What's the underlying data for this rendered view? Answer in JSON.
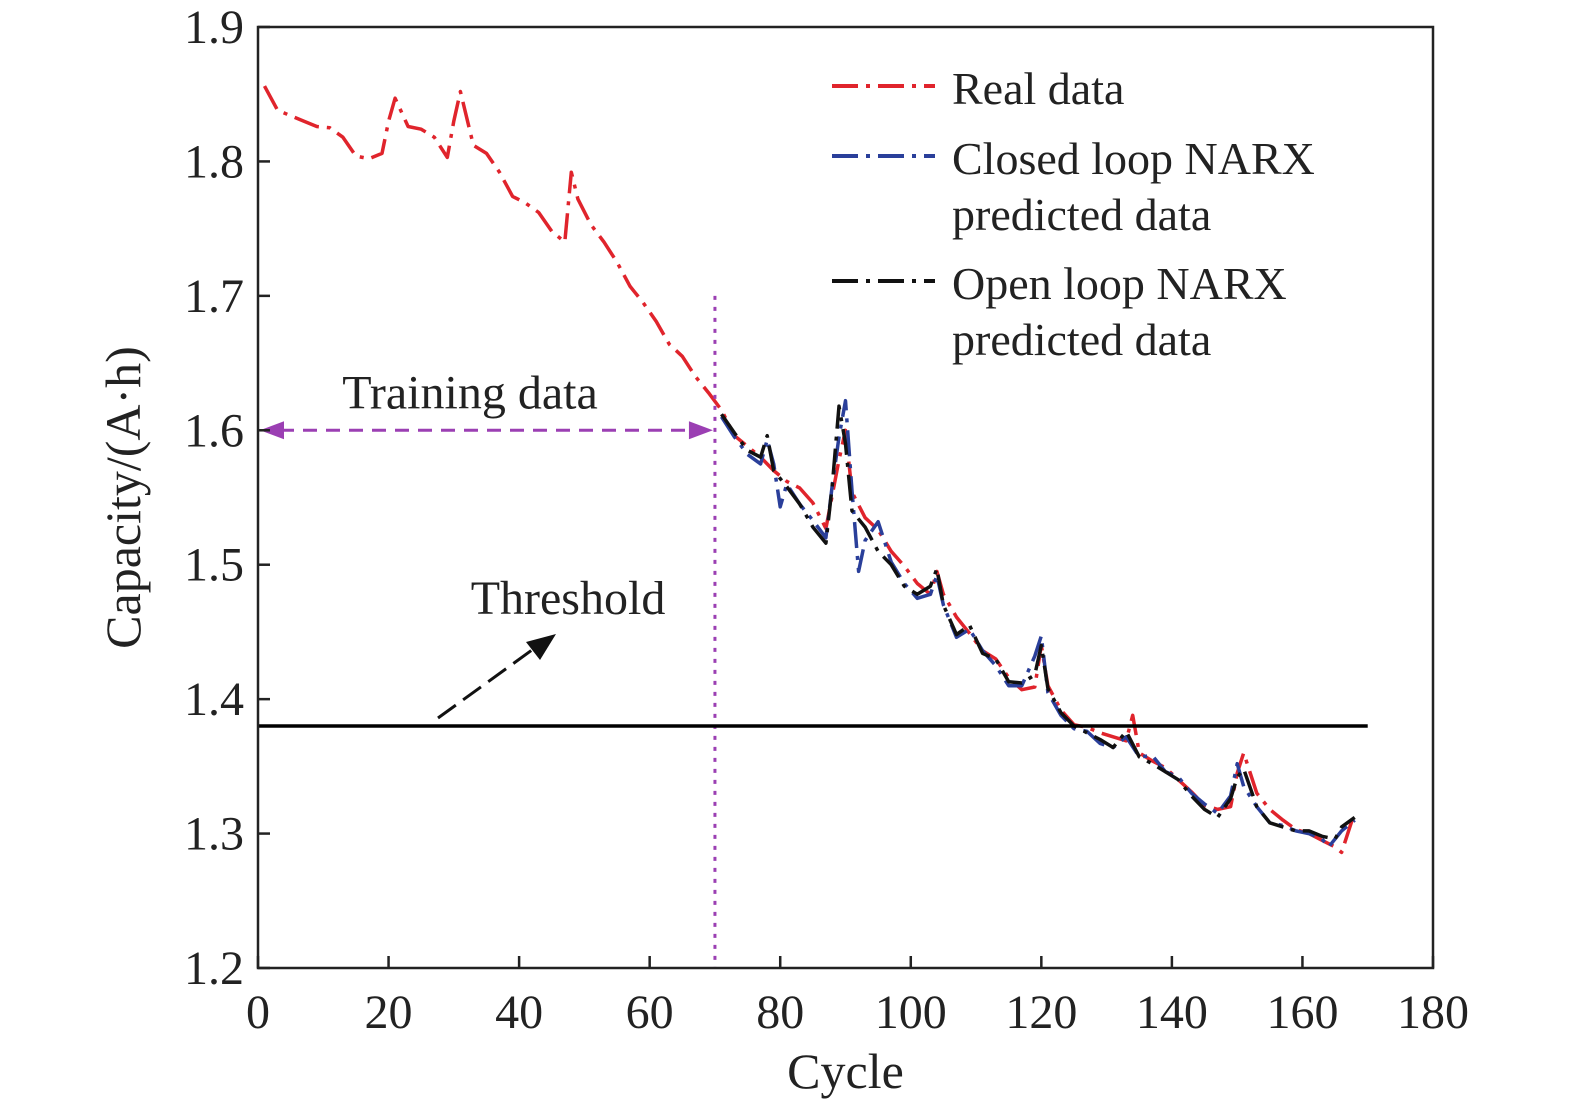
{
  "chart_data": {
    "type": "line",
    "xlabel": "Cycle",
    "ylabel": "Capacity/(A·h)",
    "xlim": [
      0,
      180
    ],
    "ylim": [
      1.2,
      1.9
    ],
    "xticks": [
      "0",
      "20",
      "40",
      "60",
      "80",
      "100",
      "120",
      "140",
      "160",
      "180"
    ],
    "yticks": [
      "1.2",
      "1.3",
      "1.4",
      "1.5",
      "1.6",
      "1.7",
      "1.8",
      "1.9"
    ],
    "grid": false,
    "legend_position": "top-right",
    "colors": {
      "real": "#e0242c",
      "closed": "#2a3f9a",
      "open": "#111111",
      "training": "#9b3fb3",
      "threshold": "#000000"
    },
    "threshold": 1.38,
    "training_end": 70,
    "annotations": {
      "training": "Training data",
      "threshold": "Threshold"
    },
    "series": [
      {
        "name": "Real data",
        "key": "real",
        "x": [
          1,
          3,
          5,
          7,
          9,
          11,
          13,
          15,
          17,
          19,
          20,
          21,
          23,
          25,
          27,
          29,
          30,
          31,
          33,
          35,
          37,
          39,
          41,
          43,
          45,
          47,
          48,
          49,
          51,
          53,
          55,
          57,
          59,
          61,
          63,
          65,
          67,
          69,
          71,
          73,
          75,
          77,
          79,
          81,
          83,
          85,
          87,
          89,
          90,
          91,
          93,
          95,
          97,
          99,
          101,
          103,
          104,
          105,
          107,
          109,
          111,
          113,
          115,
          117,
          119,
          120,
          121,
          123,
          125,
          127,
          129,
          131,
          133,
          134,
          135,
          137,
          139,
          141,
          143,
          145,
          147,
          149,
          150,
          151,
          153,
          155,
          157,
          159,
          161,
          163,
          165,
          166,
          168
        ],
        "y": [
          1.856,
          1.838,
          1.834,
          1.83,
          1.826,
          1.825,
          1.818,
          1.804,
          1.802,
          1.806,
          1.83,
          1.847,
          1.826,
          1.824,
          1.818,
          1.803,
          1.83,
          1.852,
          1.812,
          1.806,
          1.792,
          1.774,
          1.769,
          1.762,
          1.748,
          1.74,
          1.792,
          1.772,
          1.753,
          1.74,
          1.725,
          1.707,
          1.695,
          1.681,
          1.664,
          1.655,
          1.64,
          1.628,
          1.615,
          1.596,
          1.588,
          1.58,
          1.57,
          1.562,
          1.557,
          1.546,
          1.527,
          1.578,
          1.6,
          1.554,
          1.535,
          1.526,
          1.51,
          1.499,
          1.486,
          1.478,
          1.495,
          1.478,
          1.461,
          1.449,
          1.436,
          1.43,
          1.416,
          1.407,
          1.409,
          1.44,
          1.41,
          1.392,
          1.381,
          1.379,
          1.375,
          1.372,
          1.369,
          1.388,
          1.36,
          1.354,
          1.349,
          1.34,
          1.331,
          1.321,
          1.318,
          1.32,
          1.345,
          1.36,
          1.33,
          1.318,
          1.31,
          1.303,
          1.3,
          1.295,
          1.29,
          1.286,
          1.316
        ]
      },
      {
        "name": "Closed loop NARX predicted data",
        "key": "closed",
        "x": [
          71,
          73,
          75,
          77,
          78,
          79,
          80,
          81,
          83,
          85,
          87,
          88,
          89,
          90,
          91,
          92,
          93,
          95,
          97,
          99,
          101,
          103,
          104,
          105,
          107,
          109,
          111,
          113,
          115,
          117,
          119,
          120,
          121,
          123,
          125,
          127,
          129,
          131,
          133,
          135,
          137,
          139,
          141,
          143,
          145,
          147,
          149,
          150,
          151,
          153,
          155,
          157,
          159,
          161,
          163,
          164,
          166,
          168
        ],
        "y": [
          1.61,
          1.595,
          1.582,
          1.575,
          1.593,
          1.575,
          1.543,
          1.56,
          1.545,
          1.533,
          1.52,
          1.56,
          1.595,
          1.622,
          1.555,
          1.495,
          1.518,
          1.532,
          1.502,
          1.486,
          1.475,
          1.478,
          1.492,
          1.47,
          1.446,
          1.452,
          1.436,
          1.425,
          1.41,
          1.41,
          1.432,
          1.447,
          1.405,
          1.388,
          1.378,
          1.376,
          1.367,
          1.364,
          1.372,
          1.357,
          1.358,
          1.346,
          1.342,
          1.33,
          1.322,
          1.315,
          1.328,
          1.352,
          1.335,
          1.32,
          1.308,
          1.306,
          1.302,
          1.3,
          1.296,
          1.29,
          1.302,
          1.31
        ]
      },
      {
        "name": "Open loop NARX predicted data",
        "key": "open",
        "x": [
          71,
          73,
          75,
          77,
          78,
          79,
          81,
          83,
          85,
          87,
          88,
          89,
          90,
          91,
          93,
          95,
          97,
          99,
          101,
          103,
          104,
          105,
          107,
          109,
          111,
          113,
          115,
          117,
          119,
          120,
          121,
          123,
          125,
          127,
          129,
          131,
          133,
          135,
          137,
          139,
          141,
          143,
          145,
          147,
          149,
          150,
          151,
          153,
          155,
          157,
          159,
          161,
          163,
          165,
          166,
          168
        ],
        "y": [
          1.612,
          1.598,
          1.585,
          1.58,
          1.596,
          1.57,
          1.558,
          1.545,
          1.528,
          1.516,
          1.56,
          1.618,
          1.59,
          1.54,
          1.528,
          1.51,
          1.5,
          1.484,
          1.478,
          1.484,
          1.497,
          1.47,
          1.448,
          1.455,
          1.434,
          1.43,
          1.413,
          1.412,
          1.418,
          1.44,
          1.408,
          1.39,
          1.38,
          1.375,
          1.37,
          1.364,
          1.376,
          1.357,
          1.352,
          1.346,
          1.34,
          1.328,
          1.318,
          1.312,
          1.326,
          1.342,
          1.348,
          1.32,
          1.308,
          1.305,
          1.302,
          1.302,
          1.298,
          1.296,
          1.305,
          1.312
        ]
      }
    ]
  }
}
